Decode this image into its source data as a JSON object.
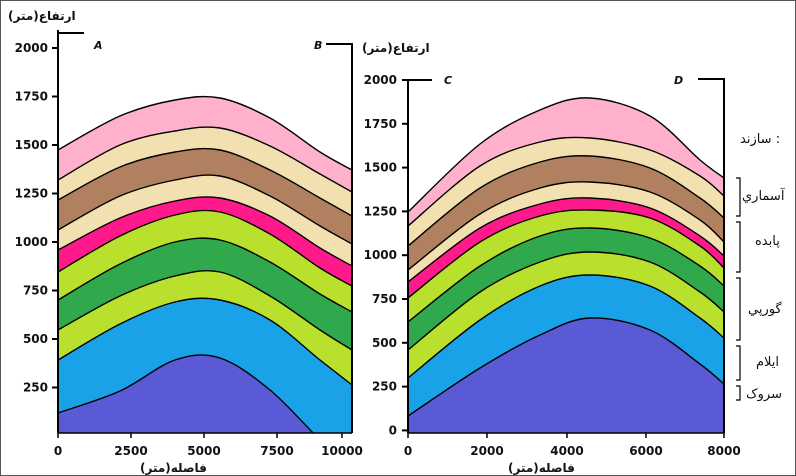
{
  "left_panel": {
    "y_title": "ارتفاع(متر)",
    "x_title": "فاصله(متر)",
    "corner_a": "A",
    "corner_b": "B",
    "y_ticks": [
      "2000",
      "1750",
      "1500",
      "1250",
      "1000",
      "750",
      "500",
      "250"
    ],
    "x_ticks": [
      "0",
      "2500",
      "5000",
      "7500",
      "10000"
    ]
  },
  "right_panel": {
    "y_title": "ارتفاع(متر)",
    "x_title": "فاصله(متر)",
    "corner_c": "C",
    "corner_d": "D",
    "y_ticks": [
      "2000",
      "1750",
      "1500",
      "1250",
      "1000",
      "750",
      "500",
      "250",
      "0"
    ],
    "x_ticks": [
      "0",
      "2000",
      "4000",
      "6000",
      "8000"
    ]
  },
  "legend": {
    "title": "سازند :",
    "formations": [
      "آسماري",
      "پابده",
      "گورپي",
      "ايلام",
      "سروک"
    ]
  },
  "layer_colors": [
    "#5a5ad6",
    "#19a2e8",
    "#b8e02c",
    "#30a84c",
    "#b8e02c",
    "#ff1a8c",
    "#f2e0b0",
    "#b08060",
    "#f2e0b0",
    "#ffb0cc"
  ]
}
